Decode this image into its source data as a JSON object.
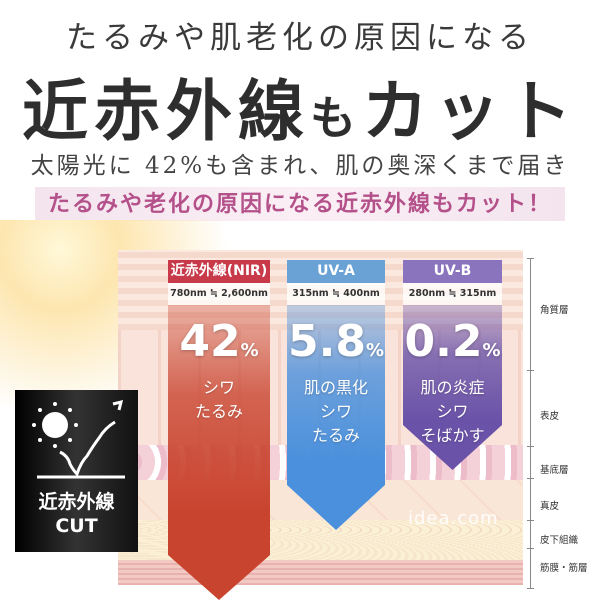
{
  "headline": {
    "line1": "たるみや肌老化の原因になる",
    "line2_main": "近赤外線",
    "line2_small": "も",
    "line2_end": "カット",
    "line3": "太陽光に 42%も含まれ、肌の奥深くまで届き",
    "band": "たるみや老化の原因になる近赤外線もカット！"
  },
  "columns": [
    {
      "name": "近赤外線(NIR)",
      "range": "780nm ≒ 2,600nm",
      "value": "42",
      "unit": "%",
      "effects": [
        "シワ",
        "たるみ"
      ],
      "header_color": "#c8394a",
      "color": "#c9442f"
    },
    {
      "name": "UV-A",
      "range": "315nm ≒ 400nm",
      "value": "5.8",
      "unit": "%",
      "effects": [
        "肌の黒化",
        "シワ",
        "たるみ"
      ],
      "header_color": "#6aa2d6",
      "color": "#4a90dc"
    },
    {
      "name": "UV-B",
      "range": "280nm ≒ 315nm",
      "value": "0.2",
      "unit": "%",
      "effects": [
        "肌の炎症",
        "シワ",
        "そばかす"
      ],
      "header_color": "#8a74bd",
      "color": "#6a52a8"
    }
  ],
  "layers": [
    "角質層",
    "表皮",
    "基底層",
    "真皮",
    "皮下組織",
    "筋膜・筋層"
  ],
  "badge": {
    "line1": "近赤外線",
    "line2": "CUT",
    "icon": "sun-reflect-icon"
  },
  "watermark": "idea.com"
}
